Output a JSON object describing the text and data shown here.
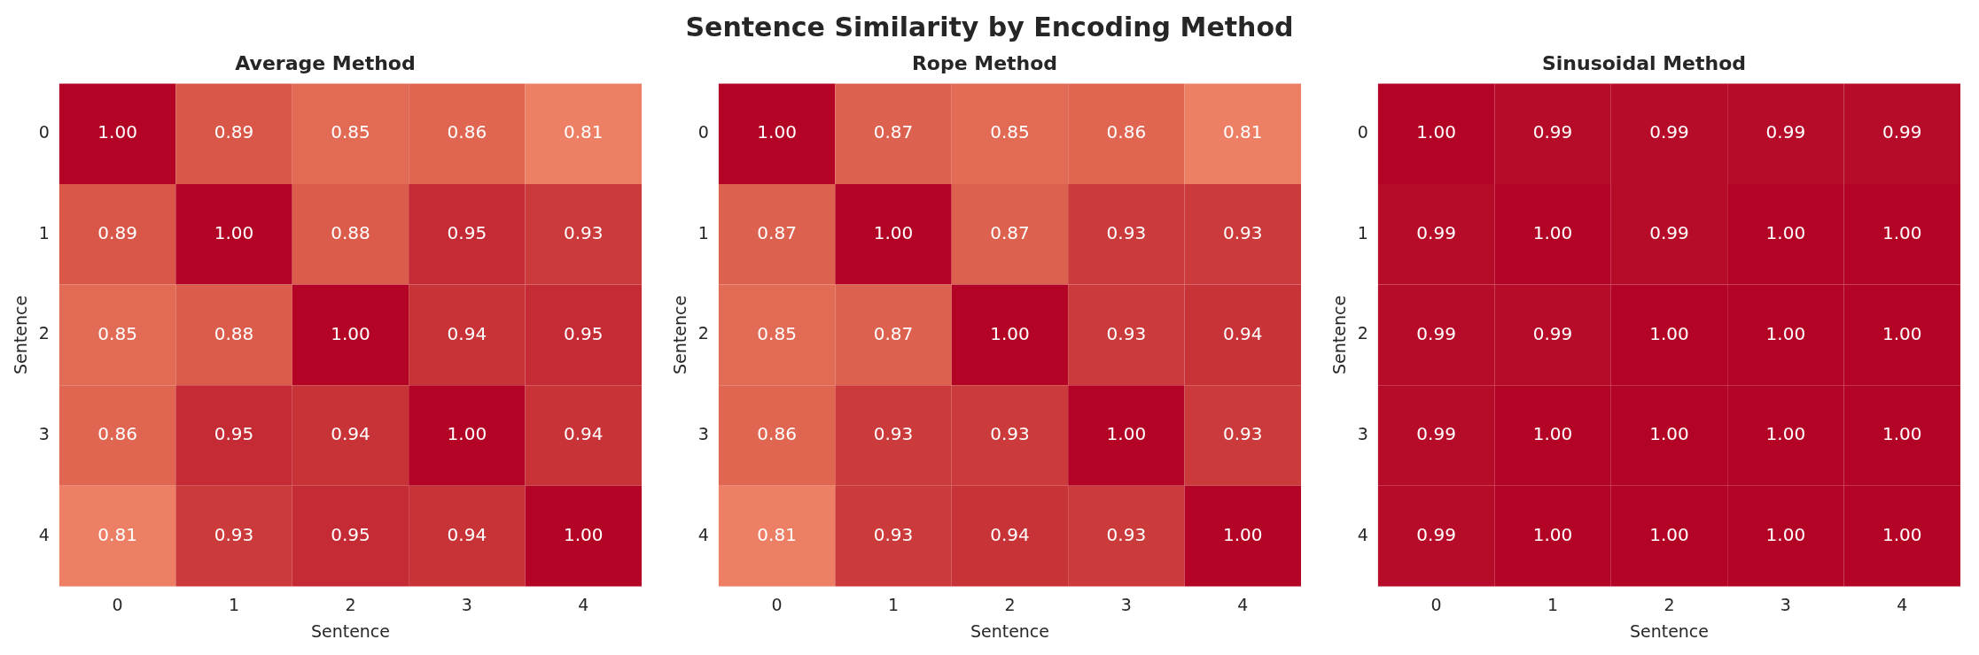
{
  "chart_data": [
    {
      "type": "heatmap",
      "title": "Average Method",
      "annotations": [
        "Sentence Similarity by Encoding Method"
      ],
      "xlabel": "Sentence",
      "ylabel": "Sentence",
      "categories": [
        "0",
        "1",
        "2",
        "3",
        "4"
      ],
      "y_categories": [
        "0",
        "1",
        "2",
        "3",
        "4"
      ],
      "cells": [
        [
          1.0,
          0.89,
          0.85,
          0.86,
          0.81
        ],
        [
          0.89,
          1.0,
          0.88,
          0.95,
          0.93
        ],
        [
          0.85,
          0.88,
          1.0,
          0.94,
          0.95
        ],
        [
          0.86,
          0.95,
          0.94,
          1.0,
          0.94
        ],
        [
          0.81,
          0.93,
          0.95,
          0.94,
          1.0
        ]
      ],
      "cell_labels": [
        [
          "1.00",
          "0.89",
          "0.85",
          "0.86",
          "0.81"
        ],
        [
          "0.89",
          "1.00",
          "0.88",
          "0.95",
          "0.93"
        ],
        [
          "0.85",
          "0.88",
          "1.00",
          "0.94",
          "0.95"
        ],
        [
          "0.86",
          "0.95",
          "0.94",
          "1.00",
          "0.94"
        ],
        [
          "0.81",
          "0.93",
          "0.95",
          "0.94",
          "1.00"
        ]
      ]
    },
    {
      "type": "heatmap",
      "title": "Rope Method",
      "xlabel": "Sentence",
      "ylabel": "Sentence",
      "categories": [
        "0",
        "1",
        "2",
        "3",
        "4"
      ],
      "y_categories": [
        "0",
        "1",
        "2",
        "3",
        "4"
      ],
      "cells": [
        [
          1.0,
          0.87,
          0.85,
          0.86,
          0.81
        ],
        [
          0.87,
          1.0,
          0.87,
          0.93,
          0.93
        ],
        [
          0.85,
          0.87,
          1.0,
          0.93,
          0.94
        ],
        [
          0.86,
          0.93,
          0.93,
          1.0,
          0.93
        ],
        [
          0.81,
          0.93,
          0.94,
          0.93,
          1.0
        ]
      ],
      "cell_labels": [
        [
          "1.00",
          "0.87",
          "0.85",
          "0.86",
          "0.81"
        ],
        [
          "0.87",
          "1.00",
          "0.87",
          "0.93",
          "0.93"
        ],
        [
          "0.85",
          "0.87",
          "1.00",
          "0.93",
          "0.94"
        ],
        [
          "0.86",
          "0.93",
          "0.93",
          "1.00",
          "0.93"
        ],
        [
          "0.81",
          "0.93",
          "0.94",
          "0.93",
          "1.00"
        ]
      ]
    },
    {
      "type": "heatmap",
      "title": "Sinusoidal Method",
      "xlabel": "Sentence",
      "ylabel": "Sentence",
      "categories": [
        "0",
        "1",
        "2",
        "3",
        "4"
      ],
      "y_categories": [
        "0",
        "1",
        "2",
        "3",
        "4"
      ],
      "cells": [
        [
          1.0,
          0.99,
          0.99,
          0.99,
          0.99
        ],
        [
          0.99,
          1.0,
          0.99,
          1.0,
          1.0
        ],
        [
          0.99,
          0.99,
          1.0,
          1.0,
          1.0
        ],
        [
          0.99,
          1.0,
          1.0,
          1.0,
          1.0
        ],
        [
          0.99,
          1.0,
          1.0,
          1.0,
          1.0
        ]
      ],
      "cell_labels": [
        [
          "1.00",
          "0.99",
          "0.99",
          "0.99",
          "0.99"
        ],
        [
          "0.99",
          "1.00",
          "0.99",
          "1.00",
          "1.00"
        ],
        [
          "0.99",
          "0.99",
          "1.00",
          "1.00",
          "1.00"
        ],
        [
          "0.99",
          "1.00",
          "1.00",
          "1.00",
          "1.00"
        ],
        [
          "0.99",
          "1.00",
          "1.00",
          "1.00",
          "1.00"
        ]
      ]
    }
  ]
}
